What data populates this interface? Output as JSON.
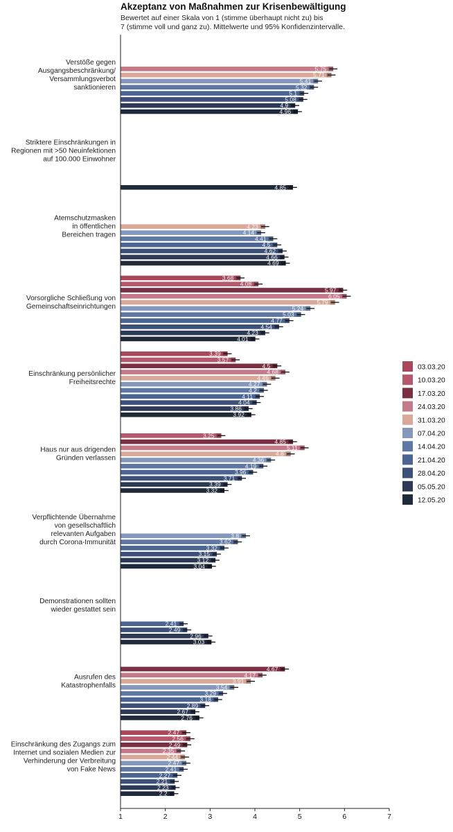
{
  "chart_data": {
    "type": "bar",
    "orientation": "horizontal",
    "title": "Akzeptanz von Maßnahmen zur Krisenbewältigung",
    "subtitle_lines": [
      "Bewertet auf einer Skala von 1 (stimme überhaupt nicht zu) bis",
      "7 (stimme voll und ganz zu). Mittelwerte und 95% Konfidenzintervalle."
    ],
    "xlabel": "",
    "ylabel": "",
    "xlim": [
      1,
      7
    ],
    "xticks": [
      1,
      2,
      3,
      4,
      5,
      6,
      7
    ],
    "grid": false,
    "legend_position": "right",
    "error_bars": "95% CI",
    "series": [
      {
        "name": "03.03.20",
        "color": "#a8485a"
      },
      {
        "name": "10.03.20",
        "color": "#b55a6c"
      },
      {
        "name": "17.03.20",
        "color": "#7a3040"
      },
      {
        "name": "24.03.20",
        "color": "#c57a8a"
      },
      {
        "name": "31.03.20",
        "color": "#d9a898"
      },
      {
        "name": "07.04.20",
        "color": "#8598bb"
      },
      {
        "name": "14.04.20",
        "color": "#5f78a3"
      },
      {
        "name": "21.04.20",
        "color": "#4b6593"
      },
      {
        "name": "28.04.20",
        "color": "#3d5078"
      },
      {
        "name": "05.05.20",
        "color": "#2d3a56"
      },
      {
        "name": "12.05.20",
        "color": "#202a3b"
      }
    ],
    "categories": [
      {
        "label": [
          "Verstöße gegen",
          "Ausgangsbeschränkung/",
          "Versammlungsverbot",
          "sanktionieren"
        ],
        "values": [
          null,
          null,
          null,
          5.75,
          5.71,
          5.41,
          5.32,
          5.1,
          5.08,
          4.9,
          4.96
        ],
        "labels": [
          "",
          "",
          "",
          "5.75",
          "5.71",
          "5.41",
          "5.32",
          "5.1",
          "5.08",
          "4.9",
          "4.96"
        ]
      },
      {
        "label": [
          "Striktere Einschränkungen in",
          "Regionen mit >50 Neuinfektionen",
          "auf 100.000 Einwohner"
        ],
        "values": [
          null,
          null,
          null,
          null,
          null,
          null,
          null,
          null,
          null,
          null,
          4.85
        ],
        "labels": [
          "",
          "",
          "",
          "",
          "",
          "",
          "",
          "",
          "",
          "",
          "4.85"
        ]
      },
      {
        "label": [
          "Atemschutzmasken",
          "in öffentlichen",
          "Bereichen tragen"
        ],
        "values": [
          null,
          null,
          null,
          null,
          4.23,
          4.14,
          4.41,
          4.5,
          4.62,
          4.66,
          4.69
        ],
        "labels": [
          "",
          "",
          "",
          "",
          "4.23",
          "4.14",
          "4.41",
          "4.5",
          "4.62",
          "4.66",
          "4.69"
        ]
      },
      {
        "label": [
          "Vorsorgliche Schließung von",
          "Gemeinschaftseinrichtungen"
        ],
        "values": [
          3.68,
          4.08,
          5.97,
          6.05,
          5.79,
          5.24,
          5.03,
          4.77,
          4.54,
          4.23,
          4.01
        ],
        "labels": [
          "3.68",
          "4.08",
          "5.97",
          "6.05",
          "5.79",
          "5.24",
          "5.03",
          "4.77",
          "4.54",
          "4.23",
          "4.01"
        ]
      },
      {
        "label": [
          "Einschränkung persönlicher",
          "Freiheitsrechte"
        ],
        "values": [
          3.39,
          3.57,
          4.5,
          4.68,
          4.46,
          4.27,
          4.2,
          4.11,
          4.04,
          3.86,
          3.92
        ],
        "labels": [
          "3.39",
          "3.57",
          "4.5",
          "4.68",
          "4.46",
          "4.27",
          "4.2",
          "4.11",
          "4.04",
          "3.86",
          "3.92"
        ]
      },
      {
        "label": [
          "Haus nur aus drigenden",
          "Gründen verlassen"
        ],
        "values": [
          null,
          3.25,
          4.85,
          5.11,
          4.8,
          4.36,
          4.19,
          3.96,
          3.71,
          3.39,
          3.32
        ],
        "labels": [
          "",
          "3.25",
          "4.85",
          "5.11",
          "4.8",
          "4.36",
          "4.19",
          "3.96",
          "3.71",
          "3.39",
          "3.32"
        ]
      },
      {
        "label": [
          "Verpflichtende Übernahme",
          "von gesellschaftlich",
          "relevanten Aufgaben",
          "durch Corona-Immunität"
        ],
        "values": [
          null,
          null,
          null,
          null,
          null,
          3.8,
          3.62,
          3.32,
          3.15,
          3.12,
          3.04
        ],
        "labels": [
          "",
          "",
          "",
          "",
          "",
          "3.8",
          "3.62",
          "3.32",
          "3.15",
          "3.12",
          "3.04"
        ]
      },
      {
        "label": [
          "Demonstrationen sollten",
          "wieder gestattet sein"
        ],
        "values": [
          null,
          null,
          null,
          null,
          null,
          null,
          null,
          2.41,
          2.49,
          2.96,
          3.03
        ],
        "labels": [
          "",
          "",
          "",
          "",
          "",
          "",
          "",
          "2.41",
          "2.49",
          "2.96",
          "3.03"
        ]
      },
      {
        "label": [
          "Ausrufen des",
          "Katastrophenfalls"
        ],
        "values": [
          null,
          null,
          4.67,
          4.17,
          3.91,
          3.54,
          3.29,
          3.18,
          2.89,
          2.67,
          2.76
        ],
        "labels": [
          "",
          "",
          "4.67",
          "4.17",
          "3.91",
          "3.54",
          "3.29",
          "3.18",
          "2.89",
          "2.67",
          "2.76"
        ]
      },
      {
        "label": [
          "Einschränkung des Zugangs zum",
          "Internet und sozialen Medien zur",
          "Verhinderung der Verbreitung",
          "von Fake News"
        ],
        "values": [
          2.47,
          2.56,
          2.49,
          2.35,
          2.44,
          2.47,
          2.41,
          2.27,
          2.21,
          2.23,
          2.2
        ],
        "labels": [
          "2.47",
          "2.56",
          "2.49",
          "2.35",
          "2.44",
          "2.47",
          "2.41",
          "2.27",
          "2.21",
          "2.23",
          "2.2"
        ]
      }
    ]
  }
}
